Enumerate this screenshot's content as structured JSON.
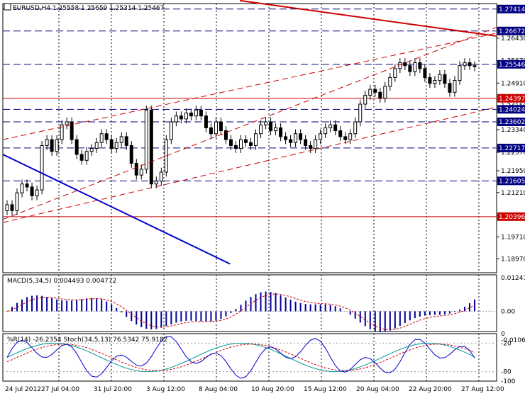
{
  "header": {
    "symbol": "EURUSD,H4",
    "ohlc": "1.25558 1.25659 1.25314 1.25467"
  },
  "colors": {
    "background": "#ffffff",
    "grid": "#000000",
    "candle": "#000000",
    "hline_blue": "#000080",
    "hline_red": "#cc0000",
    "trend_red": "#cc0000",
    "trend_blue": "#0000cc",
    "label_blue_bg": "#000080",
    "label_red_bg": "#cc0000",
    "macd_hist": "#000099",
    "macd_signal": "#cc0000",
    "wpr": "#0000cc",
    "stoch_main": "#009999",
    "stoch_signal": "#cc0000"
  },
  "chart_data": [
    {
      "type": "candlestick",
      "title": "EURUSD,H4",
      "ylim": [
        1.185,
        1.276
      ],
      "y_ticks": [
        "1.26430",
        "1.25670",
        "1.24910",
        "1.24150",
        "1.23340",
        "1.22570",
        "1.21950",
        "1.21210",
        "1.20430",
        "1.19710",
        "1.18970"
      ],
      "x_ticks": [
        "24 Jul 2012",
        "27 Jul 04:00",
        "31 Jul 20:00",
        "3 Aug 12:00",
        "8 Aug 04:00",
        "10 Aug 20:00",
        "15 Aug 12:00",
        "20 Aug 04:00",
        "22 Aug 20:00",
        "27 Aug 12:00"
      ],
      "horizontal_levels": [
        {
          "value": 1.27414,
          "label": "1.27414",
          "color": "blue",
          "style": "dashed"
        },
        {
          "value": 1.26672,
          "label": "1.26672",
          "color": "blue",
          "style": "dashed"
        },
        {
          "value": 1.25546,
          "label": "1.25546",
          "color": "blue",
          "style": "dashed"
        },
        {
          "value": 1.24397,
          "label": "1.24397",
          "color": "red",
          "style": "solid"
        },
        {
          "value": 1.24024,
          "label": "1.24024",
          "color": "blue",
          "style": "dashed"
        },
        {
          "value": 1.23602,
          "label": "1.23602",
          "color": "blue",
          "style": "dashed"
        },
        {
          "value": 1.22717,
          "label": "1.22717",
          "color": "blue",
          "style": "dashed"
        },
        {
          "value": 1.21605,
          "label": "1.21605",
          "color": "blue",
          "style": "dashed"
        },
        {
          "value": 1.20396,
          "label": "1.20396",
          "color": "red",
          "style": "solid"
        }
      ],
      "closes": [
        1.208,
        1.206,
        1.212,
        1.215,
        1.214,
        1.211,
        1.213,
        1.228,
        1.23,
        1.226,
        1.23,
        1.235,
        1.236,
        1.23,
        1.225,
        1.223,
        1.226,
        1.227,
        1.229,
        1.232,
        1.23,
        1.227,
        1.229,
        1.231,
        1.228,
        1.222,
        1.218,
        1.22,
        1.24,
        1.215,
        1.216,
        1.219,
        1.23,
        1.236,
        1.238,
        1.237,
        1.239,
        1.238,
        1.24,
        1.238,
        1.234,
        1.232,
        1.236,
        1.233,
        1.23,
        1.228,
        1.227,
        1.23,
        1.229,
        1.228,
        1.232,
        1.235,
        1.236,
        1.233,
        1.234,
        1.231,
        1.23,
        1.229,
        1.232,
        1.23,
        1.228,
        1.227,
        1.23,
        1.232,
        1.234,
        1.235,
        1.233,
        1.231,
        1.23,
        1.232,
        1.236,
        1.242,
        1.245,
        1.247,
        1.246,
        1.244,
        1.248,
        1.251,
        1.254,
        1.256,
        1.255,
        1.253,
        1.256,
        1.254,
        1.251,
        1.249,
        1.25,
        1.252,
        1.249,
        1.246,
        1.25,
        1.255,
        1.256,
        1.255,
        1.2547
      ],
      "trendlines": [
        {
          "name": "channel-upper",
          "from": [
            0,
            1.203
          ],
          "to": [
            100,
            1.268
          ],
          "color": "red",
          "style": "dashed"
        },
        {
          "name": "channel-lower",
          "from": [
            0,
            1.202
          ],
          "to": [
            100,
            1.241
          ],
          "color": "red",
          "style": "dashed"
        },
        {
          "name": "upper-channel-line",
          "from": [
            0,
            1.23
          ],
          "to": [
            100,
            1.266
          ],
          "color": "red",
          "style": "dashed"
        },
        {
          "name": "resistance",
          "from": [
            48,
            1.277
          ],
          "to": [
            100,
            1.265
          ],
          "color": "red",
          "style": "solid"
        },
        {
          "name": "support-down",
          "from": [
            0,
            1.225
          ],
          "to": [
            46,
            1.188
          ],
          "color": "blue",
          "style": "solid"
        }
      ]
    },
    {
      "type": "bar",
      "title": "MACD(5,34,5) 0.004493 0.004772",
      "ylim": [
        -0.0075,
        0.0135
      ],
      "y_ticks": [
        "0.012412",
        "0.00",
        "-0.010687"
      ],
      "values_description": "histogram with signal line"
    },
    {
      "type": "line",
      "title": "%R(14) -26.2354 Stoch(34,5,13) 76.5342 75.9182",
      "ylim": [
        -100,
        0
      ],
      "y_ticks": [
        "0",
        "-20",
        "-80",
        "-100"
      ]
    }
  ]
}
